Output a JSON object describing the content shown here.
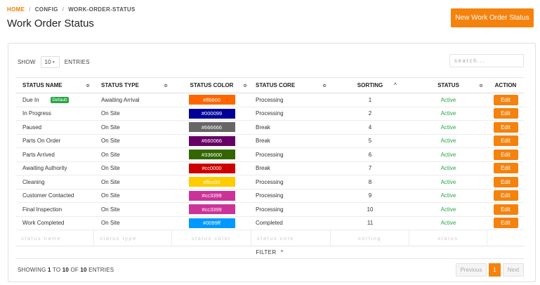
{
  "breadcrumb": {
    "home": "HOME",
    "config": "CONFIG",
    "current": "WORK-ORDER-STATUS",
    "separator": "/"
  },
  "page_title": "Work Order Status",
  "new_button": "New Work Order Status",
  "length": {
    "show_label": "SHOW",
    "value": "10",
    "entries_label": "ENTRIES"
  },
  "search": {
    "placeholder": "search..."
  },
  "columns": {
    "name": "STATUS NAME",
    "type": "STATUS TYPE",
    "color": "STATUS COLOR",
    "core": "STATUS CORE",
    "sorting": "SORTING",
    "status": "STATUS",
    "action": "ACTION"
  },
  "sort_icons": {
    "unsorted": "≎",
    "asc": "^"
  },
  "rows": [
    {
      "name": "Due In",
      "badge": "Default",
      "type": "Awaiting Arrival",
      "color": "#ff6600",
      "core": "Processing",
      "sorting": "1",
      "status": "Active",
      "action": "Edit"
    },
    {
      "name": "In Progress",
      "badge": "",
      "type": "On Site",
      "color": "#000099",
      "core": "Processing",
      "sorting": "2",
      "status": "Active",
      "action": "Edit"
    },
    {
      "name": "Paused",
      "badge": "",
      "type": "On Site",
      "color": "#666666",
      "core": "Break",
      "sorting": "4",
      "status": "Active",
      "action": "Edit"
    },
    {
      "name": "Parts On Order",
      "badge": "",
      "type": "On Site",
      "color": "#660066",
      "core": "Break",
      "sorting": "5",
      "status": "Active",
      "action": "Edit"
    },
    {
      "name": "Parts Arrived",
      "badge": "",
      "type": "On Site",
      "color": "#336600",
      "core": "Processing",
      "sorting": "6",
      "status": "Active",
      "action": "Edit"
    },
    {
      "name": "Awaiting Authority",
      "badge": "",
      "type": "On Site",
      "color": "#cc0000",
      "core": "Break",
      "sorting": "7",
      "status": "Active",
      "action": "Edit"
    },
    {
      "name": "Cleaning",
      "badge": "",
      "type": "On Site",
      "color": "#ffcc00",
      "core": "Processing",
      "sorting": "8",
      "status": "Active",
      "action": "Edit"
    },
    {
      "name": "Customer Contacted",
      "badge": "",
      "type": "On Site",
      "color": "#cc3399",
      "core": "Processing",
      "sorting": "9",
      "status": "Active",
      "action": "Edit"
    },
    {
      "name": "Final Inspection",
      "badge": "",
      "type": "On Site",
      "color": "#cc3399",
      "core": "Processing",
      "sorting": "10",
      "status": "Active",
      "action": "Edit"
    },
    {
      "name": "Work Completed",
      "badge": "",
      "type": "On Site",
      "color": "#0099ff",
      "core": "Completed",
      "sorting": "11",
      "status": "Active",
      "action": "Edit"
    }
  ],
  "filters": {
    "name": "status name",
    "type": "status type",
    "color": "status color",
    "core": "status core",
    "sorting": "sorting",
    "status": "status"
  },
  "filter_toggle": {
    "label": "FILTER",
    "icon": "^"
  },
  "footer": {
    "showing": "SHOWING",
    "from": "1",
    "to_word": "TO",
    "to": "10",
    "of_word": "OF",
    "total": "10",
    "entries": "ENTRIES"
  },
  "pager": {
    "previous": "Previous",
    "current": "1",
    "next": "Next"
  },
  "colors": {
    "accent": "#f5820d",
    "active_green": "#28a745",
    "home_link": "#f07d00"
  }
}
